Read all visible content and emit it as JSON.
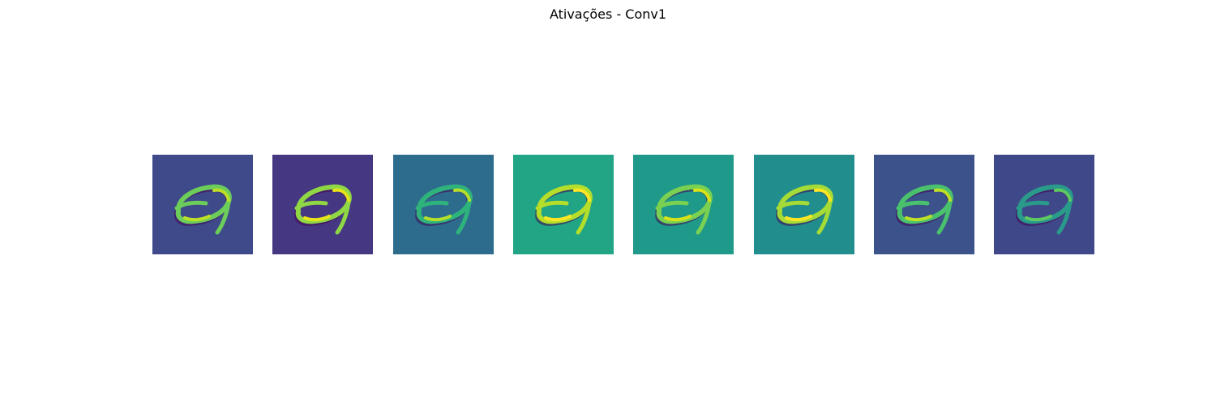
{
  "title": "Ativações - Conv1",
  "chart_data": {
    "type": "heatmap",
    "title": "Ativações - Conv1",
    "colormap": "viridis",
    "axes": "off",
    "n_maps": 8,
    "grid_size": [
      28,
      28
    ],
    "maps": [
      {
        "index": 1,
        "background_color": "#3e4a89",
        "stroke_color": "#6ccd5a",
        "highlight_color": "#bddf26"
      },
      {
        "index": 2,
        "background_color": "#453781",
        "stroke_color": "#8fd744",
        "highlight_color": "#e7e419"
      },
      {
        "index": 3,
        "background_color": "#2e6c8e",
        "stroke_color": "#2eb37c",
        "highlight_color": "#b5de2b"
      },
      {
        "index": 4,
        "background_color": "#21a585",
        "stroke_color": "#b5de2b",
        "highlight_color": "#fde725"
      },
      {
        "index": 5,
        "background_color": "#1f9a8a",
        "stroke_color": "#7ad151",
        "highlight_color": "#d8e219"
      },
      {
        "index": 6,
        "background_color": "#218e8d",
        "stroke_color": "#a5db36",
        "highlight_color": "#fde725"
      },
      {
        "index": 7,
        "background_color": "#3b528b",
        "stroke_color": "#4ac16d",
        "highlight_color": "#bddf26"
      },
      {
        "index": 8,
        "background_color": "#3f4889",
        "stroke_color": "#2a9a8a",
        "highlight_color": "#5ec962"
      }
    ],
    "dark_color": "#440154"
  }
}
